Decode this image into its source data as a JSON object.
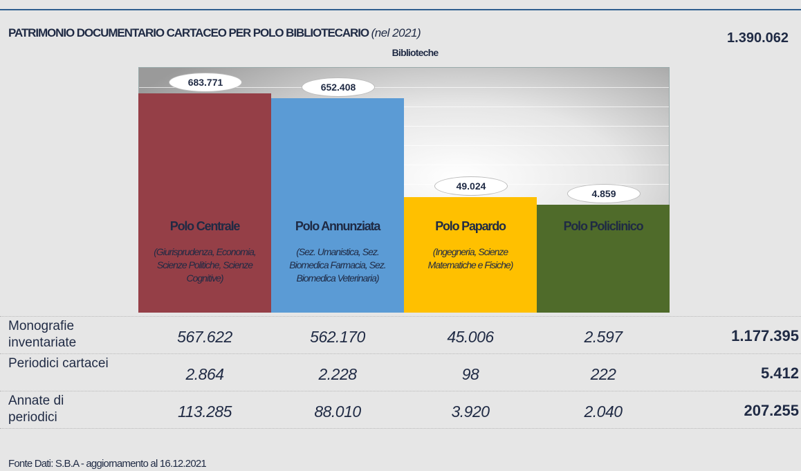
{
  "chart_data": {
    "type": "bar",
    "title": "PATRIMONIO DOCUMENTARIO CARTACEO PER POLO BIBLIOTECARIO",
    "title_note": "(nel 2021)",
    "subtitle": "Biblioteche",
    "total": "1.390.062",
    "categories": [
      "Polo Centrale",
      "Polo Annunziata",
      "Polo Papardo",
      "Polo Policlinico"
    ],
    "descriptions": [
      "(Giurisprudenza, Economia, Scienze Politiche, Scienze Cognitive)",
      "(Sez. Umanistica, Sez. Biomedica Farmacia, Sez. Biomedica Veterinaria)",
      "(Ingegneria, Scienze Matematiche e Fisiche)",
      null
    ],
    "values": [
      683771,
      652408,
      49024,
      4859
    ],
    "value_labels": [
      "683.771",
      "652.408",
      "49.024",
      "4.859"
    ],
    "colors": [
      "#953f47",
      "#5b9bd5",
      "#ffc000",
      "#4f6b2a"
    ],
    "ylim": [
      0,
      844000
    ]
  },
  "table": {
    "rows": [
      {
        "label": "Monografie inventariate",
        "values": [
          "567.622",
          "562.170",
          "45.006",
          "2.597"
        ],
        "total": "1.177.395"
      },
      {
        "label": "Periodici cartacei",
        "values": [
          "2.864",
          "2.228",
          "98",
          "222"
        ],
        "total": "5.412"
      },
      {
        "label": "Annate di periodici",
        "values": [
          "113.285",
          "88.010",
          "3.920",
          "2.040"
        ],
        "total": "207.255"
      }
    ]
  },
  "source": "Fonte Dati: S.B.A - aggiornamento al 16.12.2021"
}
